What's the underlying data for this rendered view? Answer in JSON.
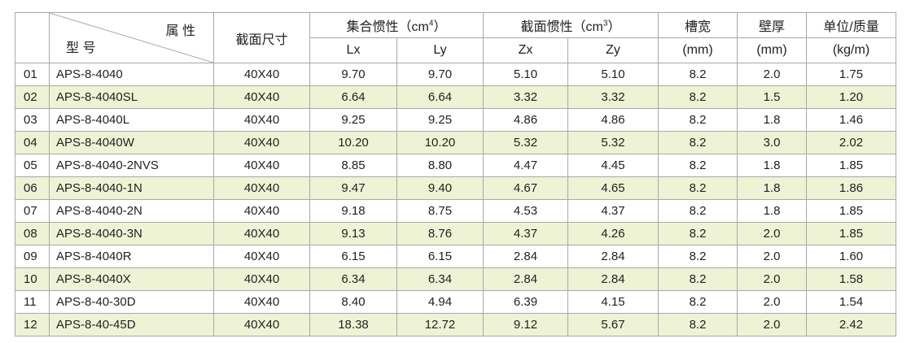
{
  "header": {
    "attr": "属 性",
    "model": "型 号",
    "size": "截面尺寸",
    "inertia": {
      "text": "集合惯性（cm",
      "sup": "4",
      "close": "）"
    },
    "section": {
      "text": "截面惯性（cm",
      "sup": "3",
      "close": "）"
    },
    "slot": "槽宽",
    "wall": "壁厚",
    "weight": "单位/质量",
    "sub": [
      "Lx",
      "Ly",
      "Zx",
      "Zy",
      "(mm)",
      "(mm)",
      "(kg/m)"
    ]
  },
  "table": {
    "rows": [
      [
        "01",
        "APS-8-4040",
        "40X40",
        "9.70",
        "9.70",
        "5.10",
        "5.10",
        "8.2",
        "2.0",
        "1.75"
      ],
      [
        "02",
        "APS-8-4040SL",
        "40X40",
        "6.64",
        "6.64",
        "3.32",
        "3.32",
        "8.2",
        "1.5",
        "1.20"
      ],
      [
        "03",
        "APS-8-4040L",
        "40X40",
        "9.25",
        "9.25",
        "4.86",
        "4.86",
        "8.2",
        "1.8",
        "1.46"
      ],
      [
        "04",
        "APS-8-4040W",
        "40X40",
        "10.20",
        "10.20",
        "5.32",
        "5.32",
        "8.2",
        "3.0",
        "2.02"
      ],
      [
        "05",
        "APS-8-4040-2NVS",
        "40X40",
        "8.85",
        "8.80",
        "4.47",
        "4.45",
        "8.2",
        "1.8",
        "1.85"
      ],
      [
        "06",
        "APS-8-4040-1N",
        "40X40",
        "9.47",
        "9.40",
        "4.67",
        "4.65",
        "8.2",
        "1.8",
        "1.86"
      ],
      [
        "07",
        "APS-8-4040-2N",
        "40X40",
        "9.18",
        "8.75",
        "4.53",
        "4.37",
        "8.2",
        "1.8",
        "1.85"
      ],
      [
        "08",
        "APS-8-4040-3N",
        "40X40",
        "9.13",
        "8.76",
        "4.37",
        "4.26",
        "8.2",
        "2.0",
        "1.85"
      ],
      [
        "09",
        "APS-8-4040R",
        "40X40",
        "6.15",
        "6.15",
        "2.84",
        "2.84",
        "8.2",
        "2.0",
        "1.60"
      ],
      [
        "10",
        "APS-8-4040X",
        "40X40",
        "6.34",
        "6.34",
        "2.84",
        "2.84",
        "8.2",
        "2.0",
        "1.58"
      ],
      [
        "11",
        "APS-8-40-30D",
        "40X40",
        "8.40",
        "4.94",
        "6.39",
        "4.15",
        "8.2",
        "2.0",
        "1.54"
      ],
      [
        "12",
        "APS-8-40-45D",
        "40X40",
        "18.38",
        "12.72",
        "9.12",
        "5.67",
        "8.2",
        "2.0",
        "2.42"
      ]
    ]
  }
}
